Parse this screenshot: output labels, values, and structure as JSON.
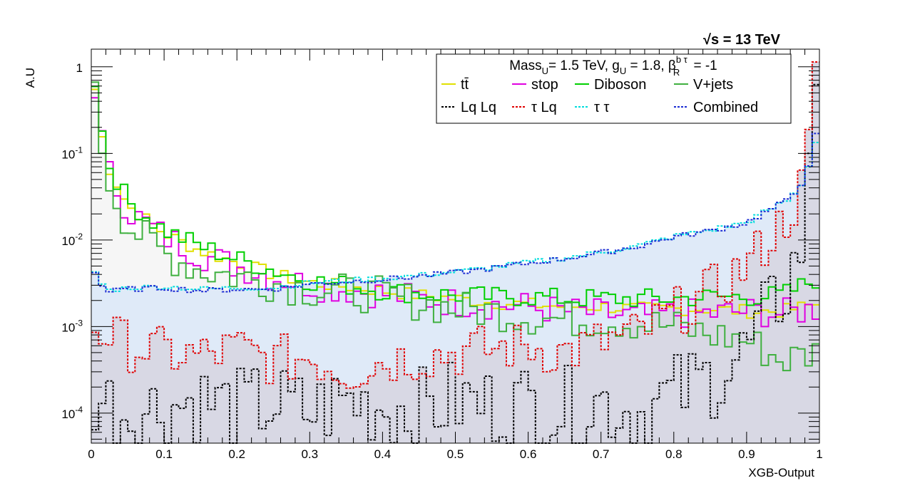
{
  "chart_data": {
    "type": "line",
    "energy_label": "√s = 13 TeV",
    "xlabel": "XGB-Output",
    "ylabel": "A.U",
    "xlim": [
      0,
      1
    ],
    "ylim": [
      4.5e-05,
      1.6
    ],
    "log_y": true,
    "grid": false,
    "legend_position": "top-right",
    "legend_header": "Mass_U= 1.5 TeV, g_U = 1.8, β_R^{b τ} = -1",
    "x_tick_labels": [
      "0",
      "0.1",
      "0.2",
      "0.3",
      "0.4",
      "0.5",
      "0.6",
      "0.7",
      "0.8",
      "0.9",
      "1"
    ],
    "y_tick_labels": [
      "1",
      "10^-1",
      "10^-2",
      "10^-3",
      "10^-4"
    ],
    "series": [
      {
        "name": "tt̄",
        "color": "#e0e000",
        "style": "solid",
        "x": [
          0.005,
          0.02,
          0.05,
          0.1,
          0.15,
          0.2,
          0.25,
          0.3,
          0.35,
          0.4,
          0.45,
          0.5,
          0.55,
          0.6,
          0.65,
          0.7,
          0.75,
          0.8,
          0.85,
          0.9,
          0.95,
          0.995
        ],
        "values": [
          0.55,
          0.08,
          0.025,
          0.012,
          0.0075,
          0.0055,
          0.004,
          0.0032,
          0.0029,
          0.0026,
          0.0023,
          0.0021,
          0.0019,
          0.0018,
          0.0017,
          0.0017,
          0.0016,
          0.0016,
          0.0016,
          0.0015,
          0.0015,
          0.0018
        ]
      },
      {
        "name": "stop",
        "color": "#e000e0",
        "style": "solid",
        "x": [
          0.005,
          0.02,
          0.05,
          0.1,
          0.15,
          0.2,
          0.25,
          0.3,
          0.35,
          0.4,
          0.45,
          0.5,
          0.55,
          0.6,
          0.65,
          0.7,
          0.75,
          0.8,
          0.85,
          0.9,
          0.95,
          0.995
        ],
        "values": [
          0.6,
          0.07,
          0.022,
          0.011,
          0.0068,
          0.005,
          0.0038,
          0.003,
          0.0027,
          0.0024,
          0.0021,
          0.0019,
          0.0018,
          0.0017,
          0.0015,
          0.0014,
          0.0013,
          0.0014,
          0.0014,
          0.0015,
          0.0014,
          0.0016
        ]
      },
      {
        "name": "Diboson",
        "color": "#00d000",
        "style": "solid",
        "x": [
          0.005,
          0.02,
          0.05,
          0.1,
          0.15,
          0.2,
          0.25,
          0.3,
          0.35,
          0.4,
          0.45,
          0.5,
          0.55,
          0.6,
          0.65,
          0.7,
          0.75,
          0.8,
          0.85,
          0.9,
          0.95,
          0.995
        ],
        "values": [
          0.7,
          0.09,
          0.028,
          0.013,
          0.0085,
          0.006,
          0.0045,
          0.0034,
          0.003,
          0.0026,
          0.0024,
          0.0023,
          0.0022,
          0.0022,
          0.0021,
          0.0021,
          0.0021,
          0.0021,
          0.0022,
          0.0022,
          0.0023,
          0.0035
        ]
      },
      {
        "name": "V+jets",
        "color": "#3fb03f",
        "style": "solid",
        "x": [
          0.005,
          0.02,
          0.05,
          0.1,
          0.15,
          0.2,
          0.25,
          0.3,
          0.35,
          0.4,
          0.45,
          0.5,
          0.55,
          0.6,
          0.65,
          0.7,
          0.75,
          0.8,
          0.85,
          0.9,
          0.95,
          0.995
        ],
        "values": [
          0.45,
          0.06,
          0.015,
          0.007,
          0.0045,
          0.0038,
          0.0032,
          0.0027,
          0.0025,
          0.0023,
          0.0019,
          0.0016,
          0.0015,
          0.0013,
          0.0012,
          0.0012,
          0.0011,
          0.001,
          0.0008,
          0.0007,
          0.0004,
          0.0005
        ]
      },
      {
        "name": "Lq Lq",
        "color": "#000000",
        "style": "dotted",
        "x": [
          0.005,
          0.05,
          0.1,
          0.15,
          0.2,
          0.25,
          0.3,
          0.35,
          0.4,
          0.45,
          0.5,
          0.55,
          0.6,
          0.65,
          0.7,
          0.75,
          0.8,
          0.85,
          0.9,
          0.93,
          0.96,
          0.98,
          0.995
        ],
        "values": [
          0.00016,
          0.0001,
          0.00012,
          0.00014,
          0.00011,
          0.00013,
          0.0001,
          0.00014,
          0.00012,
          0.00011,
          0.00014,
          0.00012,
          0.00013,
          0.00011,
          0.00014,
          0.0001,
          0.00016,
          0.00025,
          0.0005,
          0.0013,
          0.0035,
          0.012,
          0.9
        ]
      },
      {
        "name": "τ Lq",
        "color": "#e00000",
        "style": "dotted",
        "x": [
          0.005,
          0.05,
          0.1,
          0.15,
          0.2,
          0.25,
          0.3,
          0.35,
          0.4,
          0.45,
          0.5,
          0.55,
          0.6,
          0.65,
          0.7,
          0.75,
          0.8,
          0.85,
          0.9,
          0.93,
          0.96,
          0.98,
          0.995
        ],
        "values": [
          0.001,
          0.0006,
          0.0005,
          0.00045,
          0.00055,
          0.0004,
          0.00045,
          0.0003,
          0.0004,
          0.00045,
          0.0005,
          0.00055,
          0.0006,
          0.0005,
          0.00065,
          0.0008,
          0.0014,
          0.0025,
          0.005,
          0.01,
          0.02,
          0.05,
          0.75
        ]
      },
      {
        "name": "τ τ",
        "color": "#00dddd",
        "style": "dotted",
        "x": [
          0.005,
          0.02,
          0.05,
          0.1,
          0.15,
          0.2,
          0.25,
          0.3,
          0.35,
          0.4,
          0.45,
          0.5,
          0.55,
          0.6,
          0.65,
          0.7,
          0.75,
          0.8,
          0.85,
          0.9,
          0.93,
          0.96,
          0.98,
          0.995
        ],
        "values": [
          0.0043,
          0.0026,
          0.0028,
          0.0029,
          0.0027,
          0.0028,
          0.0028,
          0.0032,
          0.0034,
          0.0036,
          0.0039,
          0.0043,
          0.0048,
          0.0055,
          0.0062,
          0.0072,
          0.0085,
          0.011,
          0.013,
          0.016,
          0.022,
          0.03,
          0.05,
          0.14
        ]
      },
      {
        "name": "Combined",
        "color": "#1a2bd4",
        "style": "dotted",
        "x": [
          0.005,
          0.02,
          0.05,
          0.1,
          0.15,
          0.2,
          0.25,
          0.3,
          0.35,
          0.4,
          0.45,
          0.5,
          0.55,
          0.6,
          0.65,
          0.7,
          0.75,
          0.8,
          0.85,
          0.9,
          0.93,
          0.96,
          0.98,
          0.995
        ],
        "values": [
          0.0042,
          0.0025,
          0.0027,
          0.0028,
          0.0026,
          0.0027,
          0.0027,
          0.0031,
          0.0033,
          0.0035,
          0.0038,
          0.0042,
          0.0047,
          0.0054,
          0.0061,
          0.0071,
          0.0084,
          0.0108,
          0.0128,
          0.0158,
          0.0218,
          0.0298,
          0.052,
          0.16
        ]
      }
    ]
  }
}
